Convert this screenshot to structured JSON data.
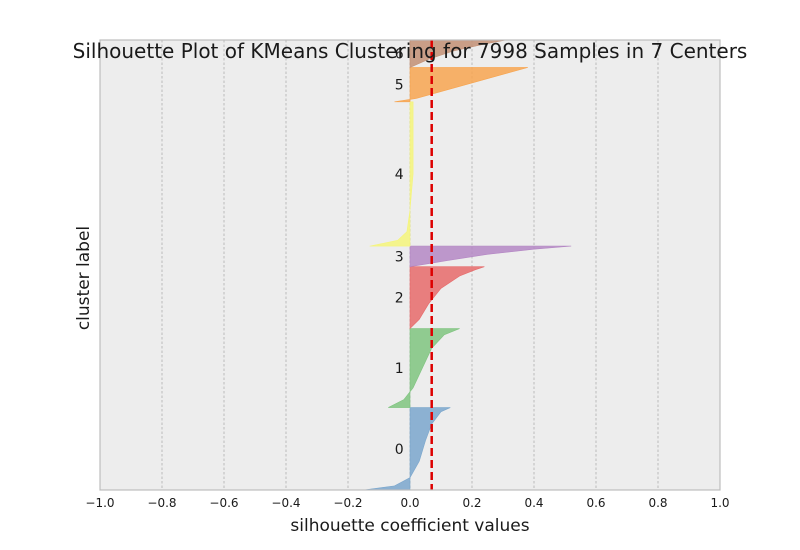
{
  "chart_data": {
    "type": "area",
    "title": "Silhouette Plot of KMeans Clustering for 7998 Samples in 7 Centers",
    "xlabel": "silhouette coefficient values",
    "ylabel": "cluster label",
    "xlim": [
      -1.0,
      1.0
    ],
    "x_ticks": [
      "−1.0",
      "−0.8",
      "−0.6",
      "−0.4",
      "−0.2",
      "0.0",
      "0.2",
      "0.4",
      "0.6",
      "0.8",
      "1.0"
    ],
    "grid": "vertical dashed",
    "average_silhouette": 0.07,
    "average_line_color": "#dd0000",
    "background_color": "#ededed",
    "clusters": [
      {
        "label": "0",
        "color": "#7aa6cc",
        "y_range": [
          0,
          24
        ],
        "profile": [
          [
            0,
            -0.15
          ],
          [
            0.05,
            -0.05
          ],
          [
            0.15,
            0.0
          ],
          [
            0.35,
            0.03
          ],
          [
            0.6,
            0.05
          ],
          [
            0.8,
            0.07
          ],
          [
            0.95,
            0.1
          ],
          [
            1,
            0.13
          ]
        ]
      },
      {
        "label": "1",
        "color": "#7fc47f",
        "y_range": [
          24,
          47
        ],
        "profile": [
          [
            0,
            -0.07
          ],
          [
            0.1,
            -0.02
          ],
          [
            0.25,
            0.01
          ],
          [
            0.5,
            0.04
          ],
          [
            0.75,
            0.07
          ],
          [
            0.92,
            0.11
          ],
          [
            1,
            0.16
          ]
        ]
      },
      {
        "label": "2",
        "color": "#e66a6a",
        "y_range": [
          47,
          65
        ],
        "profile": [
          [
            0,
            0.0
          ],
          [
            0.15,
            0.03
          ],
          [
            0.4,
            0.06
          ],
          [
            0.65,
            0.1
          ],
          [
            0.85,
            0.16
          ],
          [
            0.95,
            0.21
          ],
          [
            1,
            0.24
          ]
        ]
      },
      {
        "label": "3",
        "color": "#b487c4",
        "y_range": [
          65,
          71
        ],
        "profile": [
          [
            0,
            0.0
          ],
          [
            0.3,
            0.12
          ],
          [
            0.6,
            0.25
          ],
          [
            0.85,
            0.4
          ],
          [
            1,
            0.52
          ]
        ]
      },
      {
        "label": "4",
        "color": "#f5f57a",
        "y_range": [
          71,
          113
        ],
        "profile": [
          [
            0,
            -0.13
          ],
          [
            0.04,
            -0.04
          ],
          [
            0.1,
            -0.01
          ],
          [
            0.25,
            0.0
          ],
          [
            0.5,
            0.01
          ],
          [
            0.8,
            0.01
          ],
          [
            1,
            0.01
          ]
        ]
      },
      {
        "label": "5",
        "color": "#f7a550",
        "y_range": [
          113,
          123
        ],
        "profile": [
          [
            0,
            -0.05
          ],
          [
            0.1,
            0.02
          ],
          [
            0.3,
            0.1
          ],
          [
            0.55,
            0.2
          ],
          [
            0.8,
            0.3
          ],
          [
            1,
            0.38
          ]
        ]
      },
      {
        "label": "6",
        "color": "#c28f74",
        "y_range": [
          123,
          131
        ],
        "profile": [
          [
            0,
            0.0
          ],
          [
            0.3,
            0.06
          ],
          [
            0.6,
            0.14
          ],
          [
            0.85,
            0.24
          ],
          [
            1,
            0.31
          ]
        ]
      }
    ],
    "ylim": [
      0,
      131
    ]
  }
}
